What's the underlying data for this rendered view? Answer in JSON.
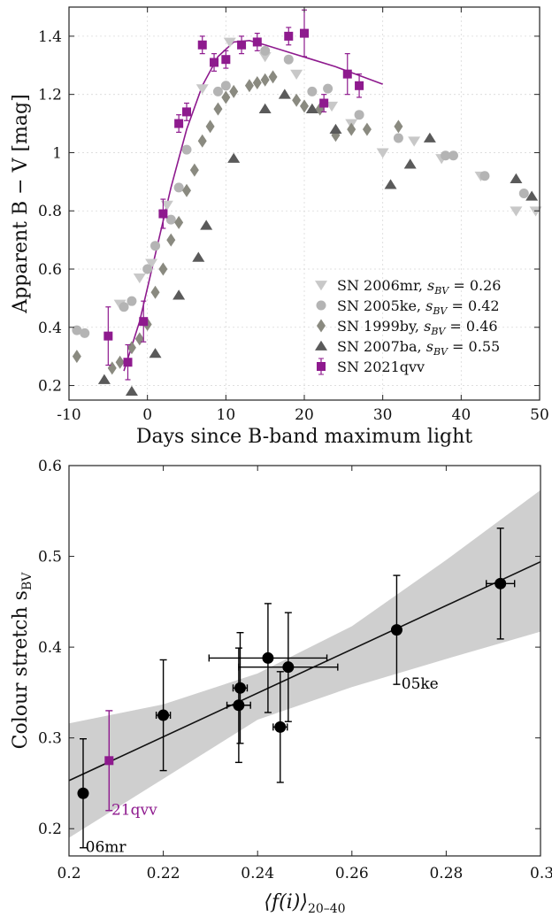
{
  "colors": {
    "sn2006mr": "#c8c8c8",
    "sn2005ke": "#b4b4b4",
    "sn1999by": "#8a8a80",
    "sn2007ba": "#5a5a5a",
    "sn2021qvv": "#8e1a8e",
    "band": "#cfcfcf",
    "points": "#000000"
  },
  "chart_data": [
    {
      "type": "scatter",
      "title": "",
      "xlabel": "Days since B-band maximum light",
      "ylabel": "Apparent B − V [mag]",
      "xlim": [
        -10,
        50
      ],
      "ylim": [
        0.15,
        1.5
      ],
      "x_ticks": [
        -10,
        0,
        10,
        20,
        30,
        40,
        50
      ],
      "y_ticks": [
        0.2,
        0.4,
        0.6,
        0.8,
        1,
        1.2,
        1.4
      ],
      "x_tick_labels": [
        "-10",
        "0",
        "10",
        "20",
        "30",
        "40",
        "50"
      ],
      "y_tick_labels": [
        "0.2",
        "0.4",
        "0.6",
        "0.8",
        "1",
        "1.2",
        "1.4"
      ],
      "legend_position": "bottom-right",
      "series": [
        {
          "name": "SN 2006mr, s_BV = 0.26",
          "legend": {
            "prefix": "SN 2006mr, ",
            "s": "s",
            "sub": "BV",
            "suffix": " = 0.26"
          },
          "marker": "triangle-down",
          "color_key": "sn2006mr",
          "x": [
            -3.5,
            -1,
            0.5,
            2.5,
            7,
            10.5,
            15,
            19,
            23.5,
            26,
            30,
            34,
            37.5,
            42.5,
            47,
            49.5
          ],
          "y": [
            0.48,
            0.57,
            0.62,
            0.82,
            1.22,
            1.38,
            1.33,
            1.27,
            1.16,
            1.1,
            1.0,
            1.04,
            0.98,
            0.92,
            0.8,
            0.8
          ]
        },
        {
          "name": "SN 2005ke, s_BV = 0.42",
          "legend": {
            "prefix": "SN 2005ke, ",
            "s": "s",
            "sub": "BV",
            "suffix": " = 0.42"
          },
          "marker": "circle",
          "color_key": "sn2005ke",
          "x": [
            -9,
            -8,
            -3,
            -2,
            0,
            1,
            3,
            4,
            5,
            9,
            10,
            15,
            18,
            21,
            23,
            27,
            32,
            38,
            39,
            43,
            48
          ],
          "y": [
            0.39,
            0.38,
            0.47,
            0.49,
            0.6,
            0.68,
            0.77,
            0.88,
            1.01,
            1.21,
            1.23,
            1.35,
            1.32,
            1.21,
            1.22,
            1.13,
            1.05,
            0.99,
            0.99,
            0.92,
            0.86
          ]
        },
        {
          "name": "SN 1999by, s_BV = 0.46",
          "legend": {
            "prefix": "SN 1999by, ",
            "s": "s",
            "sub": "BV",
            "suffix": " = 0.46"
          },
          "marker": "diamond",
          "color_key": "sn1999by",
          "x": [
            -9,
            -4.5,
            -3.5,
            -2,
            -1,
            0,
            1,
            2,
            3,
            4,
            5,
            6,
            7,
            8,
            9,
            10,
            11,
            13,
            14,
            15,
            16,
            19,
            20,
            22,
            24,
            26,
            28,
            32
          ],
          "y": [
            0.3,
            0.26,
            0.28,
            0.33,
            0.36,
            0.41,
            0.52,
            0.6,
            0.7,
            0.76,
            0.87,
            0.94,
            1.04,
            1.09,
            1.15,
            1.19,
            1.21,
            1.23,
            1.24,
            1.25,
            1.26,
            1.18,
            1.16,
            1.15,
            1.06,
            1.08,
            1.08,
            1.09
          ]
        },
        {
          "name": "SN 2007ba, s_BV = 0.55",
          "legend": {
            "prefix": "SN 2007ba, ",
            "s": "s",
            "sub": "BV",
            "suffix": " = 0.55"
          },
          "marker": "triangle-up",
          "color_key": "sn2007ba",
          "x": [
            -5.5,
            -2,
            1,
            4,
            6.5,
            7.5,
            11,
            15,
            17.5,
            21,
            24,
            31,
            33.5,
            36,
            47,
            49
          ],
          "y": [
            0.22,
            0.18,
            0.31,
            0.51,
            0.64,
            0.75,
            0.98,
            1.15,
            1.2,
            1.15,
            1.08,
            0.89,
            0.96,
            1.05,
            0.91,
            0.85
          ]
        },
        {
          "name": "SN 2021qvv",
          "legend": {
            "prefix": "SN 2021qvv",
            "s": "",
            "sub": "",
            "suffix": ""
          },
          "marker": "square",
          "color_key": "sn2021qvv",
          "x": [
            -5,
            -2.5,
            -0.5,
            2,
            4,
            5,
            7,
            8.5,
            10,
            12,
            14,
            18,
            20,
            22.5,
            25.5,
            27
          ],
          "y": [
            0.37,
            0.28,
            0.42,
            0.79,
            1.1,
            1.14,
            1.37,
            1.31,
            1.32,
            1.37,
            1.38,
            1.4,
            1.41,
            1.17,
            1.27,
            1.23
          ],
          "yerr": [
            0.1,
            0.06,
            0.07,
            0.05,
            0.03,
            0.03,
            0.03,
            0.03,
            0.03,
            0.03,
            0.03,
            0.03,
            0.08,
            0.03,
            0.07,
            0.04
          ],
          "fit_curve": {
            "x": [
              -3,
              -1,
              1,
              3,
              5,
              7,
              9,
              11,
              13,
              15,
              18,
              21,
              24,
              27,
              30
            ],
            "y": [
              0.25,
              0.42,
              0.65,
              0.88,
              1.08,
              1.23,
              1.33,
              1.38,
              1.385,
              1.37,
              1.345,
              1.32,
              1.295,
              1.265,
              1.235
            ]
          }
        }
      ]
    },
    {
      "type": "scatter",
      "title": "",
      "xlabel": "⟨f(i)⟩20–40",
      "xlabel_parts": {
        "main": "⟨f(i)⟩",
        "sub": "20–40"
      },
      "ylabel": "Colour stretch s_BV",
      "ylabel_parts": {
        "main": "Colour stretch s",
        "sub": "BV"
      },
      "xlim": [
        0.2,
        0.3
      ],
      "ylim": [
        0.17,
        0.6
      ],
      "x_ticks": [
        0.2,
        0.22,
        0.24,
        0.26,
        0.28,
        0.3
      ],
      "y_ticks": [
        0.2,
        0.3,
        0.4,
        0.5,
        0.6
      ],
      "x_tick_labels": [
        "0.2",
        "0.22",
        "0.24",
        "0.26",
        "0.28",
        "0.3"
      ],
      "y_tick_labels": [
        "0.2",
        "0.3",
        "0.4",
        "0.5",
        "0.6"
      ],
      "fit_line": {
        "x": [
          0.2,
          0.3
        ],
        "y": [
          0.253,
          0.494
        ]
      },
      "confidence_band": {
        "x": [
          0.2,
          0.22,
          0.24,
          0.26,
          0.28,
          0.3
        ],
        "upper": [
          0.316,
          0.337,
          0.371,
          0.423,
          0.496,
          0.573
        ],
        "lower": [
          0.19,
          0.255,
          0.32,
          0.356,
          0.387,
          0.417
        ]
      },
      "points": [
        {
          "x": 0.203,
          "y": 0.239,
          "xerr": 0.0,
          "yerr": 0.06
        },
        {
          "x": 0.22,
          "y": 0.325,
          "xerr": 0.0015,
          "yerr": 0.061
        },
        {
          "x": 0.236,
          "y": 0.336,
          "xerr": 0.0025,
          "yerr": 0.063
        },
        {
          "x": 0.2363,
          "y": 0.355,
          "xerr": 0.0015,
          "yerr": 0.061
        },
        {
          "x": 0.2422,
          "y": 0.388,
          "xerr": 0.0125,
          "yerr": 0.06
        },
        {
          "x": 0.2448,
          "y": 0.312,
          "xerr": 0.0015,
          "yerr": 0.061
        },
        {
          "x": 0.2465,
          "y": 0.378,
          "xerr": 0.0105,
          "yerr": 0.06
        },
        {
          "x": 0.2695,
          "y": 0.419,
          "xerr": 0.0,
          "yerr": 0.06
        },
        {
          "x": 0.2915,
          "y": 0.47,
          "xerr": 0.003,
          "yerr": 0.061
        }
      ],
      "highlight": {
        "x": 0.2085,
        "y": 0.275,
        "xerr": 0.0,
        "yerr": 0.055
      },
      "annotations": [
        {
          "text": "06mr",
          "x": 0.2035,
          "y": 0.18,
          "color_key": "points"
        },
        {
          "text": "21qvv",
          "x": 0.209,
          "y": 0.221,
          "color_key": "sn2021qvv"
        },
        {
          "text": "05ke",
          "x": 0.2705,
          "y": 0.36,
          "color_key": "points"
        }
      ]
    }
  ]
}
